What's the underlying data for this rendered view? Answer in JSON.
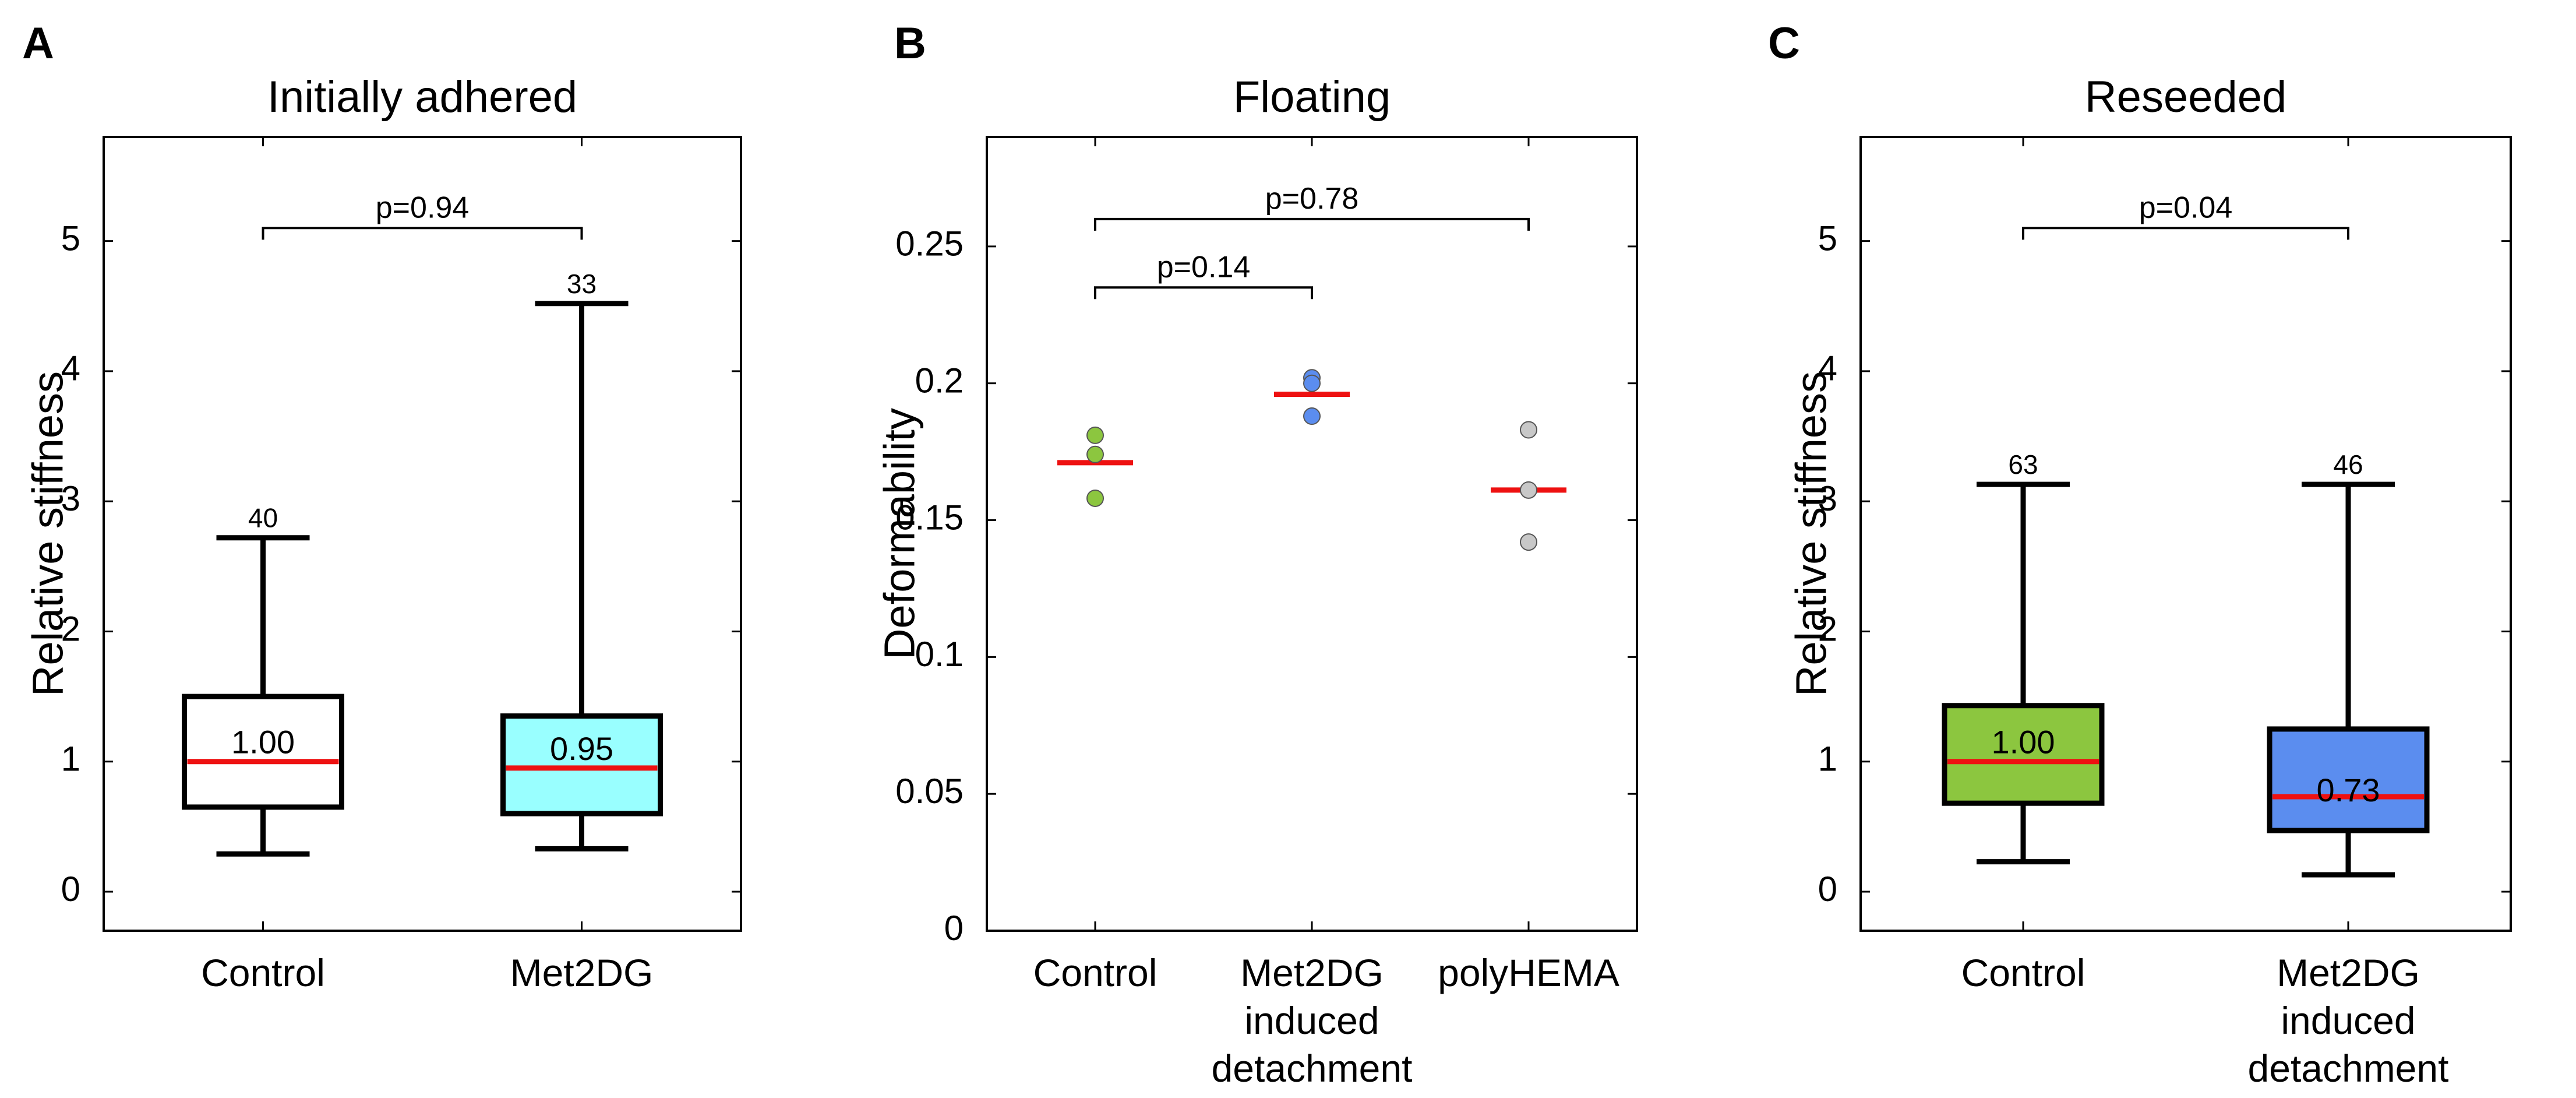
{
  "chart_data": [
    {
      "panel": "A",
      "type": "box",
      "title": "Initially adhered",
      "ylabel": "Relative stiffness",
      "xlabel": "",
      "ylim": [
        -0.3,
        5.8
      ],
      "yticks": [
        0,
        1,
        2,
        3,
        4,
        5
      ],
      "grid": false,
      "categories": [
        [
          "Control"
        ],
        [
          "Met2DG"
        ]
      ],
      "boxes": [
        {
          "whisker_low": 0.29,
          "q1": 0.65,
          "median": 1.0,
          "q3": 1.5,
          "whisker_high": 2.72,
          "n": "40",
          "median_label": "1.00",
          "fill": "#ffffff"
        },
        {
          "whisker_low": 0.33,
          "q1": 0.6,
          "median": 0.95,
          "q3": 1.35,
          "whisker_high": 4.52,
          "n": "33",
          "median_label": "0.95",
          "fill": "#99ffff"
        }
      ],
      "comparisons": [
        {
          "from": 0,
          "to": 1,
          "y": 5.1,
          "label": "p=0.94"
        }
      ]
    },
    {
      "panel": "B",
      "type": "scatter",
      "title": "Floating",
      "ylabel": "Deformability",
      "xlabel": "",
      "ylim": [
        0,
        0.29
      ],
      "yticks": [
        "0",
        "0.05",
        "0.1",
        "0.15",
        "0.2",
        "0.25"
      ],
      "grid": false,
      "categories": [
        [
          "Control"
        ],
        [
          "Met2DG",
          "induced",
          "detachment"
        ],
        [
          "polyHEMA"
        ]
      ],
      "groups": [
        {
          "points": [
            0.181,
            0.174,
            0.158
          ],
          "mean": 0.171,
          "color": "#8cc63f"
        },
        {
          "points": [
            0.202,
            0.2,
            0.188
          ],
          "mean": 0.196,
          "color": "#5b8def"
        },
        {
          "points": [
            0.183,
            0.161,
            0.142
          ],
          "mean": 0.161,
          "color": "#c8c8c8"
        }
      ],
      "comparisons": [
        {
          "from": 0,
          "to": 2,
          "y": 0.26,
          "label": "p=0.78"
        },
        {
          "from": 0,
          "to": 1,
          "y": 0.235,
          "label": "p=0.14"
        }
      ]
    },
    {
      "panel": "C",
      "type": "box",
      "title": "Reseeded",
      "ylabel": "Relative stiffness",
      "xlabel": "",
      "ylim": [
        -0.3,
        5.8
      ],
      "yticks": [
        0,
        1,
        2,
        3,
        4,
        5
      ],
      "grid": false,
      "categories": [
        [
          "Control"
        ],
        [
          "Met2DG",
          "induced",
          "detachment"
        ]
      ],
      "boxes": [
        {
          "whisker_low": 0.23,
          "q1": 0.68,
          "median": 1.0,
          "q3": 1.43,
          "whisker_high": 3.13,
          "n": "63",
          "median_label": "1.00",
          "fill": "#8cc63f"
        },
        {
          "whisker_low": 0.13,
          "q1": 0.47,
          "median": 0.73,
          "q3": 1.25,
          "whisker_high": 3.13,
          "n": "46",
          "median_label": "0.73",
          "fill": "#5b8def"
        }
      ],
      "comparisons": [
        {
          "from": 0,
          "to": 1,
          "y": 5.1,
          "label": "p=0.04"
        }
      ]
    }
  ]
}
